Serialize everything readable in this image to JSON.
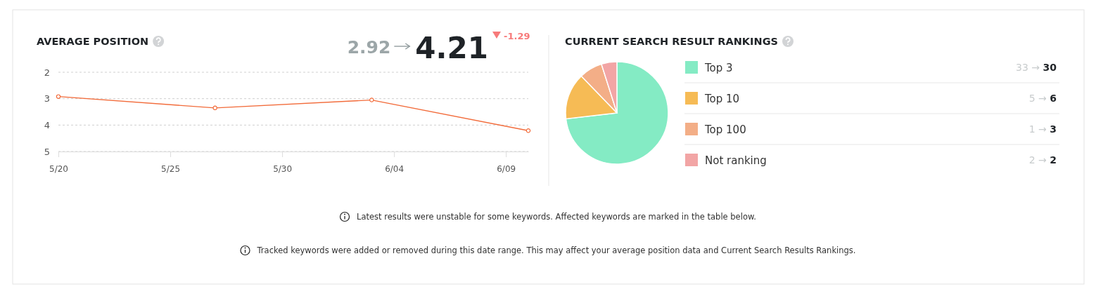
{
  "chart_data": [
    {
      "type": "line",
      "title": "AVERAGE POSITION",
      "annotations": [
        "2.92",
        "4.21",
        "-1.29"
      ],
      "x": [
        "--05-20",
        "--05-27",
        "--06-03",
        "--06-10"
      ],
      "xlim": [
        "--05-20",
        "--06-10"
      ],
      "xticks": [
        {
          "value": "--05-20",
          "label": "5/20"
        },
        {
          "value": "--05-25",
          "label": "5/25"
        },
        {
          "value": "--05-30",
          "label": "5/30"
        },
        {
          "value": "--06-04",
          "label": "6/04"
        },
        {
          "value": "--06-09",
          "label": "6/09"
        }
      ],
      "ylim": [
        5,
        2
      ],
      "yticks": [
        2,
        3,
        4,
        5
      ],
      "grid": "y",
      "marker": "circle",
      "line_style": "solid",
      "series": [
        {
          "color": "#f26b3a",
          "values": [
            2.92,
            3.35,
            3.05,
            4.21
          ]
        }
      ]
    },
    {
      "type": "pie",
      "title": "CURRENT SEARCH RESULT RANKINGS",
      "legend": "right",
      "categories": [
        "Top 3",
        "Top 10",
        "Top 100",
        "Not ranking"
      ],
      "values": [
        30,
        6,
        3,
        2
      ],
      "colors": [
        "#84ebc4",
        "#f6bb55",
        "#f3ae87",
        "#f2a5a5"
      ],
      "value_labels": [
        "33 → 30",
        "5 → 6",
        "1 → 3",
        "2 → 2"
      ],
      "annotations": [
        "Latest results were unstable for some keywords. Affected keywords are marked in the table below.",
        "Tracked keywords were added or removed during this date range. This may affect your average position data and Current Search Results Rankings."
      ]
    }
  ]
}
